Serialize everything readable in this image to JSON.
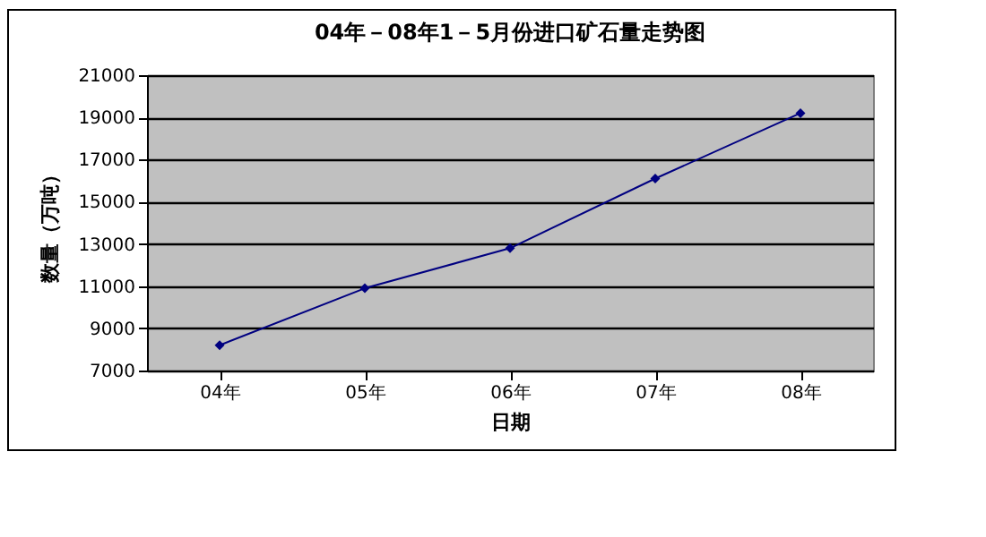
{
  "chart_data": {
    "type": "line",
    "title": "04年－08年1－5月份进口矿石量走势图",
    "xlabel": "日期",
    "ylabel": "数量（万吨）",
    "categories": [
      "04年",
      "05年",
      "06年",
      "07年",
      "08年"
    ],
    "series": [
      {
        "color": "#000080",
        "values": [
          8200,
          10900,
          12800,
          16100,
          19200
        ]
      }
    ],
    "ylim": [
      7000,
      21000
    ],
    "yticks": [
      7000,
      9000,
      11000,
      13000,
      15000,
      17000,
      19000,
      21000
    ],
    "grid": "y",
    "marker": "diamond",
    "line_style": "solid"
  }
}
